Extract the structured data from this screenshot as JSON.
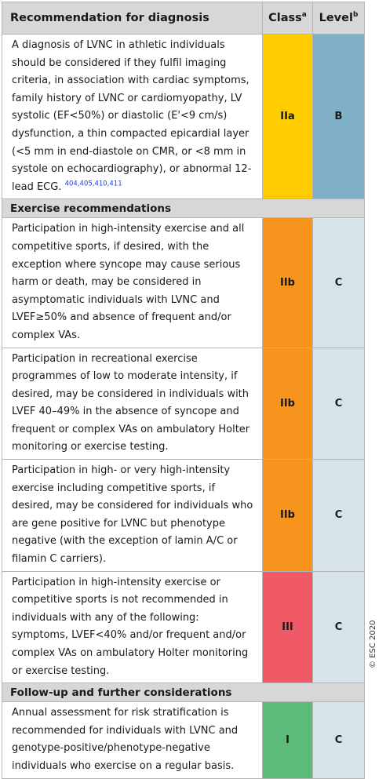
{
  "header": {
    "recommendation": "Recommendation for diagnosis",
    "class": "Class",
    "class_sup": "a",
    "level": "Level",
    "level_sup": "b"
  },
  "rows": [
    {
      "text": "A diagnosis of LVNC in athletic individuals should be considered if they fulfil imaging criteria, in association with cardiac symptoms, family history of LVNC or cardiomyopathy, LV systolic (EF<50%) or diastolic (E'<9 cm/s) dysfunction, a thin compacted epicardial layer (<5 mm in end-diastole on CMR, or <8 mm in systole on echocardiography), or abnormal 12-lead ECG.",
      "refs": "404,405,410,411",
      "class": "IIa",
      "level": "B"
    }
  ],
  "sections": [
    {
      "title": "Exercise recommendations",
      "rows": [
        {
          "text": "Participation in high-intensity exercise and all competitive sports, if desired, with the exception where syncope may cause serious harm or death, may be considered in asymptomatic individuals with LVNC and LVEF≥50% and absence of frequent and/or complex VAs.",
          "class": "IIb",
          "level": "C"
        },
        {
          "text": "Participation in recreational exercise programmes of low to moderate intensity, if desired, may be considered in individuals with LVEF 40–49% in the absence of syncope and frequent or complex VAs on ambulatory Holter monitoring or exercise testing.",
          "class": "IIb",
          "level": "C"
        },
        {
          "text": "Participation in high- or very high-intensity exercise including competitive sports, if desired, may be considered for individuals who are gene positive for LVNC but phenotype negative (with the exception of lamin A/C or filamin C carriers).",
          "class": "IIb",
          "level": "C"
        },
        {
          "text": "Participation in high-intensity exercise or competitive sports is not recommended in individuals with any of the following: symptoms, LVEF<40% and/or frequent and/or complex VAs on ambulatory Holter monitoring or exercise testing.",
          "class": "III",
          "level": "C"
        }
      ]
    },
    {
      "title": "Follow-up and further considerations",
      "rows": [
        {
          "text": "Annual assessment for risk stratification is recommended for individuals with LVNC and genotype-positive/phenotype-negative individuals who exercise on a regular basis.",
          "class": "I",
          "level": "C"
        }
      ]
    }
  ],
  "colors": {
    "header_bg": "#d7d7d7",
    "class_I": "#5dbb7a",
    "class_IIa": "#ffcc00",
    "class_IIb": "#f7941d",
    "class_III": "#f05a66",
    "level_B": "#7fb0c8",
    "level_C": "#d6e4ea",
    "ref_link": "#1f3fd0"
  },
  "copyright": "© ESC 2020"
}
